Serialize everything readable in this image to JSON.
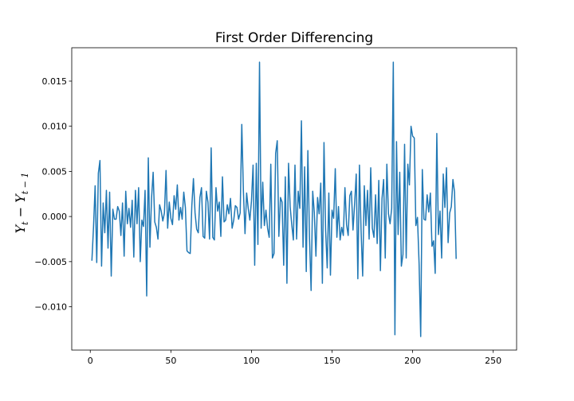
{
  "chart_data": {
    "type": "line",
    "title": "First Order Differencing",
    "xlabel": "",
    "ylabel": "Y_t − Y_{t−1}",
    "ylabel_parts": {
      "y1": "Y",
      "s1": "t",
      "minus": " − ",
      "y2": "Y",
      "s2": "t − 1"
    },
    "xlim": [
      -11.5,
      264.5
    ],
    "ylim": [
      -0.0148,
      0.0187
    ],
    "xticks": [
      0,
      50,
      100,
      150,
      200,
      250
    ],
    "xtick_labels": [
      "0",
      "50",
      "100",
      "150",
      "200",
      "250"
    ],
    "yticks": [
      -0.01,
      -0.005,
      0.0,
      0.005,
      0.01,
      0.015
    ],
    "ytick_labels": [
      "−0.010",
      "−0.005",
      "0.000",
      "0.005",
      "0.010",
      "0.015"
    ],
    "grid": false,
    "line_color": "#1f77b4",
    "x_start": 1,
    "values": [
      -0.0049,
      -0.0012,
      0.0034,
      -0.0051,
      0.0048,
      0.0062,
      -0.0055,
      0.0015,
      -0.0018,
      0.0029,
      -0.0035,
      0.0027,
      -0.0066,
      0.0008,
      -0.0003,
      -0.0003,
      0.0011,
      0.0006,
      -0.0021,
      0.0015,
      -0.0044,
      0.0028,
      -0.0008,
      0.0009,
      -0.0012,
      0.0018,
      -0.0045,
      0.0029,
      -0.0008,
      0.0032,
      -0.005,
      -0.0004,
      -0.0011,
      0.0029,
      -0.0088,
      0.0065,
      -0.0034,
      0.002,
      0.0049,
      -0.0006,
      -0.0012,
      -0.0025,
      0.0013,
      0.0006,
      -0.0005,
      0.0004,
      0.0051,
      -0.0013,
      0.0016,
      -0.0002,
      -0.0009,
      0.0023,
      0.0008,
      0.0035,
      -0.0004,
      0.001,
      -0.0003,
      0.0027,
      0.001,
      -0.0038,
      -0.004,
      -0.0041,
      0.0012,
      0.0042,
      0.0004,
      -0.0014,
      -0.0018,
      0.0021,
      0.0032,
      -0.0022,
      -0.0024,
      0.0028,
      0.0016,
      -0.0025,
      0.0076,
      -0.0023,
      -0.0026,
      0.0032,
      0.0006,
      0.0016,
      -0.0022,
      0.0044,
      -0.0006,
      -0.0004,
      0.0013,
      0.0003,
      0.002,
      -0.0013,
      -0.0004,
      0.0012,
      0.001,
      -0.0003,
      0.0004,
      0.0102,
      0.0028,
      -0.0019,
      0.0026,
      0.0009,
      -0.0004,
      0.0017,
      0.0057,
      -0.0054,
      0.0059,
      -0.0031,
      0.0171,
      -0.0013,
      0.0038,
      -0.001,
      0.0007,
      -0.0013,
      -0.0023,
      0.0058,
      -0.0046,
      -0.0041,
      0.007,
      0.0084,
      -0.0022,
      0.0021,
      0.0016,
      -0.0054,
      0.0044,
      -0.0074,
      0.0059,
      0.0011,
      -0.0009,
      -0.0026,
      0.0057,
      -0.0025,
      0.0028,
      0.0009,
      0.0106,
      -0.0034,
      0.0055,
      -0.0061,
      0.0073,
      -0.0023,
      -0.0082,
      0.0028,
      0.0004,
      -0.0044,
      0.0021,
      0.0003,
      0.0037,
      -0.0074,
      0.0082,
      -0.0015,
      -0.0057,
      0.0026,
      -0.0065,
      0.0007,
      -0.0002,
      0.0053,
      -0.0023,
      0.0011,
      -0.0026,
      -0.0012,
      -0.0021,
      0.0032,
      -0.0009,
      -0.0021,
      0.0023,
      0.0028,
      -0.0015,
      0.0014,
      0.0047,
      -0.0069,
      0.0057,
      -0.0015,
      -0.0066,
      0.0034,
      -0.001,
      0.0029,
      -0.0025,
      0.0054,
      -0.0013,
      -0.0023,
      0.0024,
      -0.003,
      0.004,
      -0.006,
      0.002,
      0.0041,
      -0.0046,
      0.0058,
      0.0003,
      -0.0008,
      0.0009,
      0.0171,
      -0.0131,
      0.0083,
      -0.002,
      0.0049,
      -0.0055,
      -0.0042,
      0.008,
      -0.0046,
      0.0058,
      0.0035,
      0.01,
      0.0089,
      0.0087,
      -0.001,
      -0.0001,
      -0.0052,
      -0.0133,
      0.0052,
      -0.0003,
      -0.0004,
      0.0024,
      0.0005,
      0.0026,
      -0.0033,
      -0.0027,
      -0.0063,
      0.0092,
      -0.002,
      0.0006,
      -0.0046,
      0.0047,
      0.001,
      0.0054,
      -0.0029,
      0.0004,
      0.0011,
      0.0041,
      0.0027,
      -0.0047
    ]
  }
}
